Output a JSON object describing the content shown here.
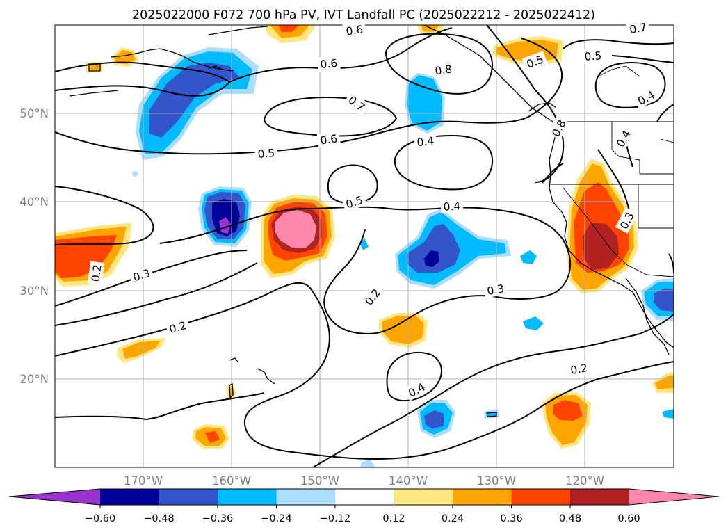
{
  "title": "2025022000 F072 700 hPa PV, IVT Landfall PC (2025022212 - 2025022412)",
  "lon_labels": [
    "170°W",
    "160°W",
    "150°W",
    "140°W",
    "130°W",
    "120°W"
  ],
  "lat_labels": [
    "50°N",
    "40°N",
    "30°N",
    "20°N"
  ],
  "contour_labels": [
    {
      "id": "c1",
      "text": "0.6"
    },
    {
      "id": "c2",
      "text": "0.6"
    },
    {
      "id": "c3",
      "text": "0.7"
    },
    {
      "id": "c4",
      "text": "0.8"
    },
    {
      "id": "c5",
      "text": "0.6"
    },
    {
      "id": "c6",
      "text": "0.5"
    },
    {
      "id": "c7",
      "text": "0.4"
    },
    {
      "id": "c8",
      "text": "0.7"
    },
    {
      "id": "c9",
      "text": "0.4"
    },
    {
      "id": "c10",
      "text": "0.5"
    },
    {
      "id": "c11",
      "text": "0.4"
    },
    {
      "id": "c12",
      "text": "0.5"
    },
    {
      "id": "c13",
      "text": "0.3"
    },
    {
      "id": "c14",
      "text": "0.2"
    },
    {
      "id": "c15",
      "text": "0.2"
    },
    {
      "id": "c16",
      "text": "0.3"
    },
    {
      "id": "c17",
      "text": "0.2"
    },
    {
      "id": "c18",
      "text": "0.4"
    },
    {
      "id": "c19",
      "text": "0.2"
    },
    {
      "id": "c20",
      "text": "0.3"
    },
    {
      "id": "c21",
      "text": "0.4"
    },
    {
      "id": "c22",
      "text": "0.8"
    },
    {
      "id": "c23",
      "text": "0.5"
    }
  ],
  "colorbar": {
    "colors": [
      "#9933cc",
      "#000099",
      "#3355cc",
      "#00bbff",
      "#aaddff",
      "#ffffff",
      "#ffe680",
      "#ffa500",
      "#ff4400",
      "#b22222",
      "#ff88aa"
    ],
    "tick_labels": [
      "−0.60",
      "−0.48",
      "−0.36",
      "−0.24",
      "−0.12",
      "0.12",
      "0.24",
      "0.36",
      "0.48",
      "0.60"
    ]
  },
  "color_map": {
    "pos": [
      "#ffe680",
      "#ffa500",
      "#ff4400",
      "#b22222",
      "#ff88aa"
    ],
    "neg": [
      "#aaddff",
      "#00bbff",
      "#3355cc",
      "#000099",
      "#9933cc"
    ]
  }
}
